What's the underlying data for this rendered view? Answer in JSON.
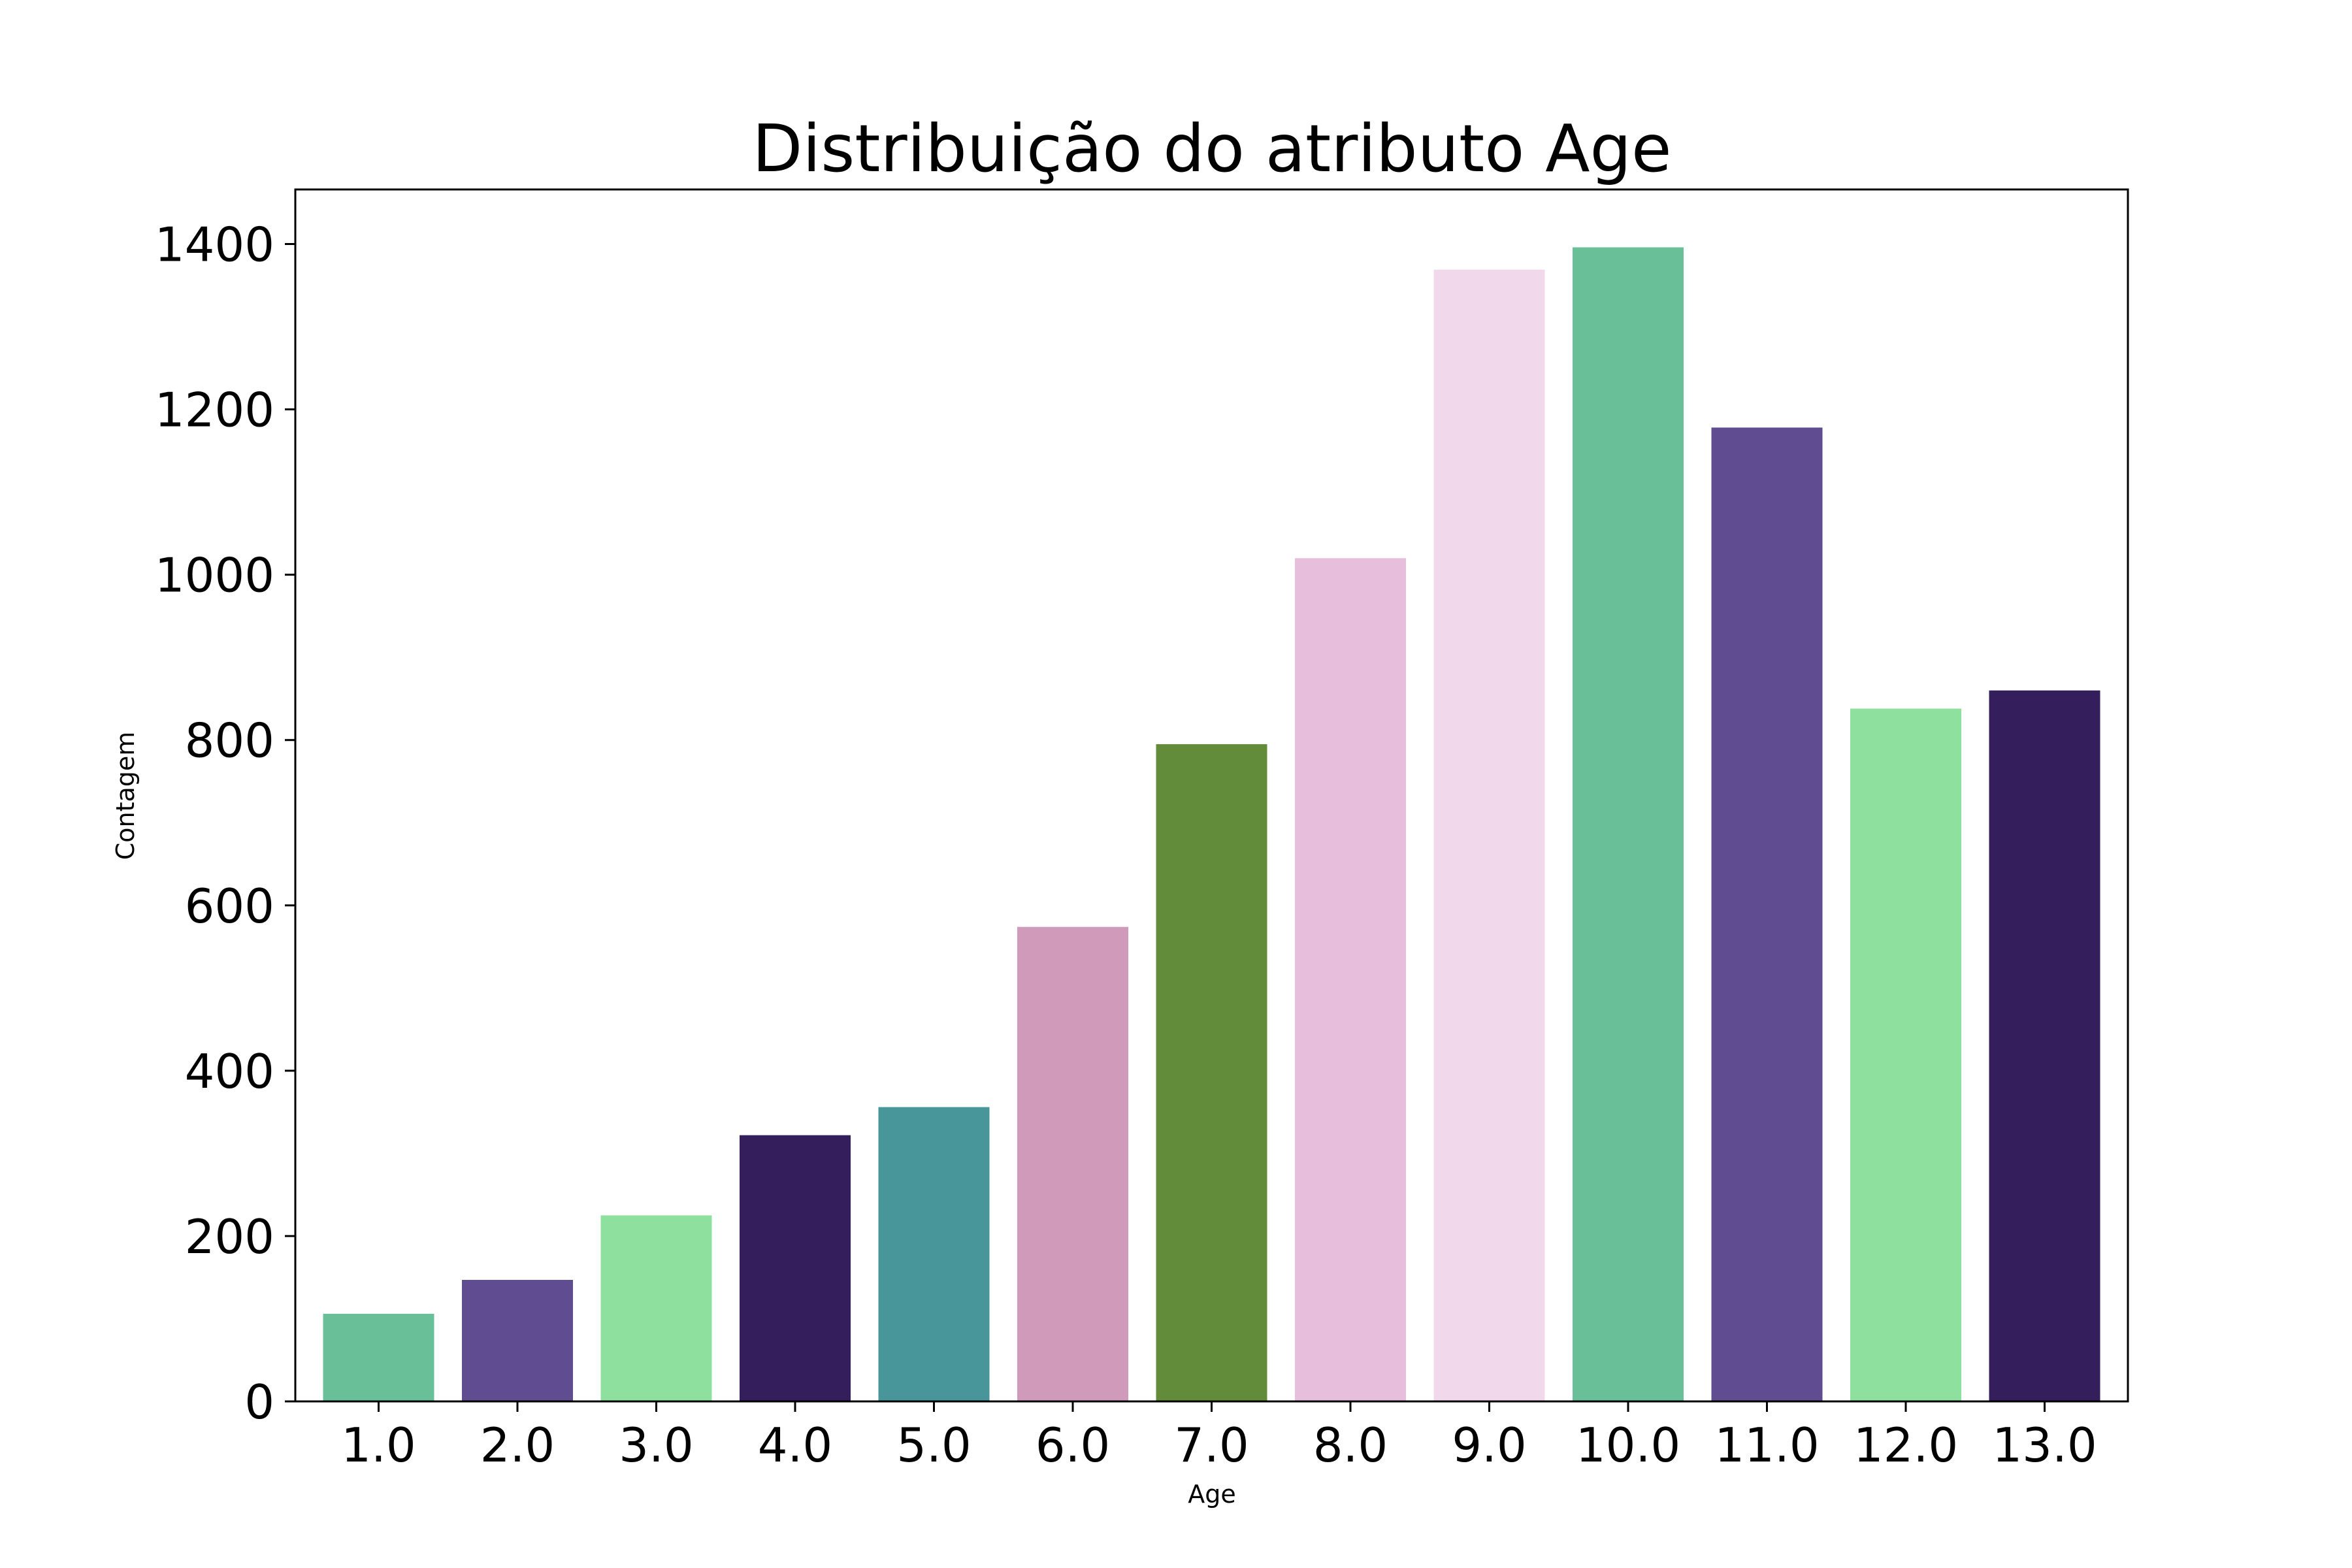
{
  "chart_data": {
    "type": "bar",
    "title": "Distribuição do atributo Age",
    "xlabel": "Age",
    "ylabel": "Contagem",
    "categories": [
      "1.0",
      "2.0",
      "3.0",
      "4.0",
      "5.0",
      "6.0",
      "7.0",
      "8.0",
      "9.0",
      "10.0",
      "11.0",
      "12.0",
      "13.0"
    ],
    "values": [
      106,
      147,
      225,
      322,
      356,
      574,
      795,
      1020,
      1369,
      1396,
      1178,
      838,
      860
    ],
    "colors": [
      "#68bf98",
      "#604c91",
      "#8ee09f",
      "#341f5c",
      "#48969a",
      "#d09bbb",
      "#628c3a",
      "#e7bedb",
      "#f1d8eb",
      "#68bf98",
      "#604c91",
      "#8ee09f",
      "#341f5c"
    ],
    "yticks": [
      0,
      200,
      400,
      600,
      800,
      1000,
      1200,
      1400
    ],
    "ylim": [
      0,
      1466
    ],
    "grid": false,
    "legend": "none"
  }
}
